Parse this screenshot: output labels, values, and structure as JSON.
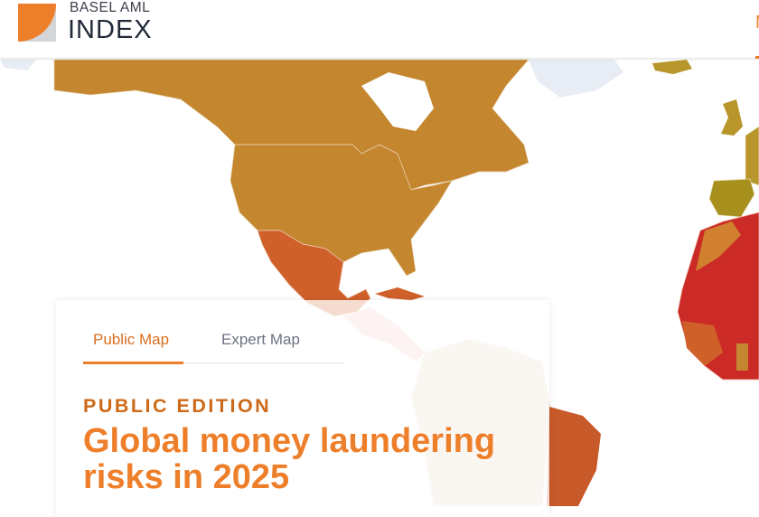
{
  "header": {
    "logo_top": "BASEL AML",
    "logo_bottom": "INDEX",
    "nav_cut_label": "M"
  },
  "tabs": [
    {
      "label": "Public Map",
      "active": true
    },
    {
      "label": "Expert Map",
      "active": false
    }
  ],
  "hero": {
    "eyebrow": "PUBLIC EDITION",
    "title": "Global money laundering risks in 2025"
  },
  "colors": {
    "accent": "#ee7f2a",
    "risk_medium": "#c4862e",
    "risk_high": "#d0602a",
    "risk_very_high": "#cc2a26",
    "risk_low": "#b8962c"
  }
}
